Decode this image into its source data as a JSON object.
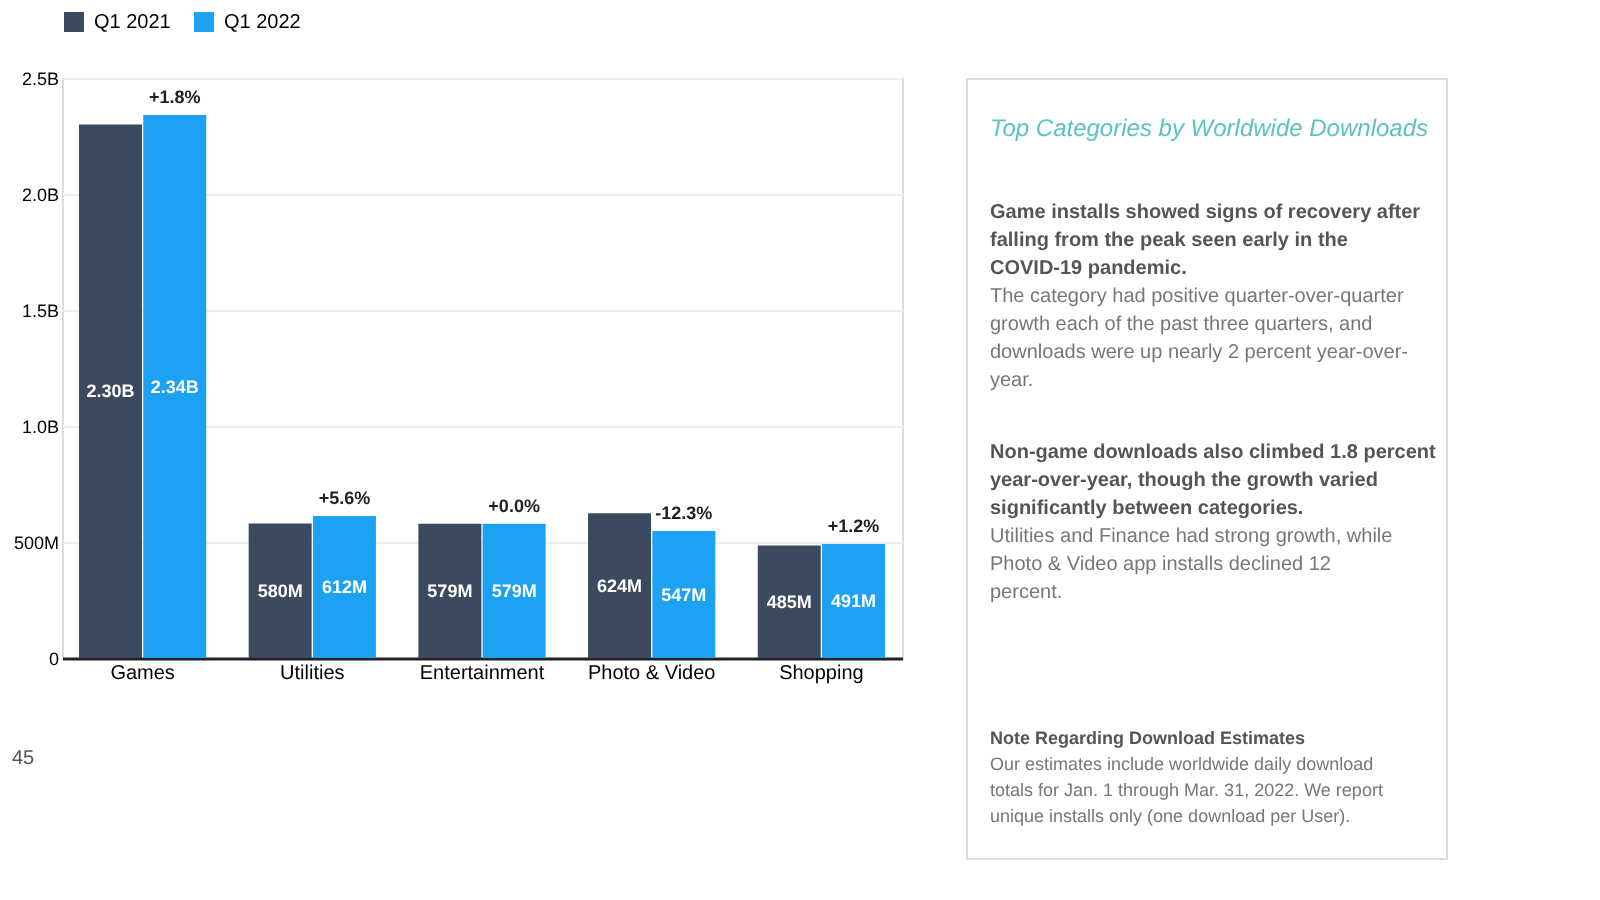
{
  "chart_data": {
    "type": "bar",
    "categories": [
      "Games",
      "Utilities",
      "Entertainment",
      "Photo & Video",
      "Shopping"
    ],
    "series": [
      {
        "name": "Q1 2021",
        "color": "#3c4a5f",
        "values": [
          2300000000,
          580000000,
          579000000,
          624000000,
          485000000
        ],
        "value_labels": [
          "2.30B",
          "580M",
          "579M",
          "624M",
          "485M"
        ]
      },
      {
        "name": "Q1 2022",
        "color": "#1da1f2",
        "values": [
          2340000000,
          612000000,
          579000000,
          547000000,
          491000000
        ],
        "value_labels": [
          "2.34B",
          "612M",
          "579M",
          "547M",
          "491M"
        ]
      }
    ],
    "ylim": [
      0,
      2500000000
    ],
    "yticks": [
      0,
      {
        "value": 500000000,
        "label": "500M"
      },
      {
        "value": 1000000000,
        "label": "1.0B"
      },
      {
        "value": 1500000000,
        "label": "1.5B"
      },
      {
        "value": 2000000000,
        "label": "2.0B"
      },
      {
        "value": 2500000000,
        "label": "2.5B"
      }
    ],
    "grid": "y",
    "legend": "top",
    "annotations": [
      {
        "text": "+1.8%",
        "x": "Games",
        "y": 2340000000
      },
      {
        "text": "+5.6%",
        "x": "Utilities",
        "y": 612000000
      },
      {
        "text": "+0.0%",
        "x": "Entertainment",
        "y": 579000000
      },
      {
        "text": "-12.3%",
        "x": "Photo & Video",
        "y": 547000000
      },
      {
        "text": "+1.2%",
        "x": "Shopping",
        "y": 491000000
      },
      "Top Categories by Worldwide Downloads",
      "Game installs showed signs of recovery after falling from the peak seen early in the COVID-19 pandemic.",
      "The category had positive quarter-over-quarter growth each of the past three quarters, and downloads were up nearly 2 percent year-over-year.",
      "Non-game downloads also climbed 1.8 percent year-over-year, though the growth varied significantly between categories.",
      "Utilities and Finance had strong growth, while Photo & Video app installs declined 12 percent.",
      "Note Regarding Download Estimates",
      "Our estimates include worldwide daily download totals for Jan. 1 through Mar. 31, 2022. We report unique installs only (one download per User).",
      "45"
    ]
  }
}
